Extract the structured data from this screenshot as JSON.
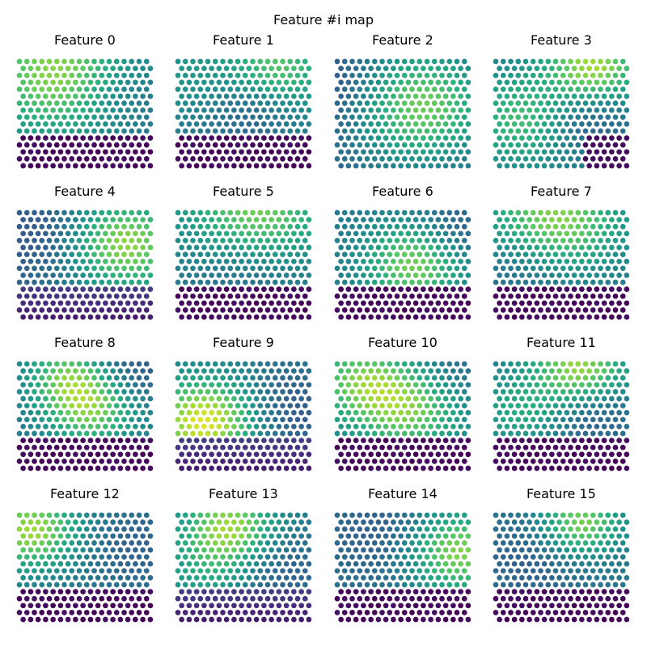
{
  "figure": {
    "suptitle": "Feature #i map"
  },
  "chart_data": {
    "type": "heatmap",
    "grid": "hexagonal",
    "rows": 16,
    "cols": 18,
    "colormap": "viridis",
    "value_range": [
      0,
      1
    ],
    "axes_visible": false,
    "panels": [
      {
        "title": "Feature 0",
        "lo": 0.0,
        "hi": 1.0,
        "base": 0.42,
        "tilt": [
          0.0,
          -0.05
        ],
        "blobs": [
          [
            0.35,
            0.14,
            0.45,
            0.4
          ],
          [
            0.7,
            0.24,
            -0.18,
            0.3
          ]
        ],
        "dark_bottom": true
      },
      {
        "title": "Feature 1",
        "lo": 0.0,
        "hi": 1.0,
        "base": 0.42,
        "tilt": [
          0.05,
          -0.05
        ],
        "blobs": [
          [
            0.75,
            0.08,
            0.3,
            0.25
          ],
          [
            0.1,
            0.2,
            0.12,
            0.3
          ],
          [
            0.55,
            0.4,
            -0.14,
            0.25
          ]
        ],
        "dark_bottom": true
      },
      {
        "title": "Feature 2",
        "lo": 0.0,
        "hi": 1.0,
        "base": 0.3,
        "tilt": [
          0.0,
          0.0
        ],
        "blobs": [
          [
            0.62,
            0.42,
            0.5,
            0.4
          ],
          [
            0.1,
            0.3,
            -0.12,
            0.3
          ]
        ],
        "dark_bottom": false
      },
      {
        "title": "Feature 3",
        "lo": 0.0,
        "hi": 1.0,
        "base": 0.42,
        "tilt": [
          0.0,
          0.0
        ],
        "blobs": [
          [
            0.75,
            0.05,
            0.45,
            0.25
          ],
          [
            0.22,
            0.55,
            0.3,
            0.3
          ],
          [
            0.65,
            0.55,
            -0.18,
            0.25
          ]
        ],
        "dark_bottom": false,
        "dark_right": true
      },
      {
        "title": "Feature 4",
        "lo": 0.0,
        "hi": 1.0,
        "base": 0.38,
        "tilt": [
          0.05,
          0.0
        ],
        "blobs": [
          [
            0.8,
            0.3,
            0.45,
            0.3
          ],
          [
            0.2,
            0.2,
            -0.1,
            0.3
          ]
        ],
        "dark_bottom": false,
        "fade_bottom": true
      },
      {
        "title": "Feature 5",
        "lo": 0.0,
        "hi": 1.0,
        "base": 0.42,
        "tilt": [
          0.0,
          -0.05
        ],
        "blobs": [
          [
            0.6,
            0.05,
            0.4,
            0.35
          ],
          [
            0.55,
            0.4,
            -0.14,
            0.3
          ]
        ],
        "dark_bottom": true
      },
      {
        "title": "Feature 6",
        "lo": 0.0,
        "hi": 1.0,
        "base": 0.4,
        "tilt": [
          0.0,
          0.0
        ],
        "blobs": [
          [
            0.6,
            0.48,
            0.42,
            0.28
          ],
          [
            0.9,
            0.2,
            -0.14,
            0.25
          ]
        ],
        "dark_bottom": true
      },
      {
        "title": "Feature 7",
        "lo": 0.0,
        "hi": 1.0,
        "base": 0.4,
        "tilt": [
          0.0,
          -0.05
        ],
        "blobs": [
          [
            0.45,
            0.1,
            0.42,
            0.35
          ],
          [
            0.25,
            0.45,
            -0.12,
            0.25
          ]
        ],
        "dark_bottom": true
      },
      {
        "title": "Feature 8",
        "lo": 0.0,
        "hi": 1.0,
        "base": 0.4,
        "tilt": [
          0.0,
          0.0
        ],
        "blobs": [
          [
            0.35,
            0.1,
            0.3,
            0.22
          ],
          [
            0.55,
            0.42,
            0.4,
            0.25
          ],
          [
            0.85,
            0.08,
            -0.14,
            0.22
          ]
        ],
        "dark_bottom": true
      },
      {
        "title": "Feature 9",
        "lo": 0.0,
        "hi": 1.0,
        "base": 0.42,
        "tilt": [
          0.0,
          0.0
        ],
        "blobs": [
          [
            0.2,
            0.55,
            0.55,
            0.28
          ],
          [
            0.85,
            0.45,
            -0.14,
            0.3
          ]
        ],
        "dark_bottom": false,
        "fade_bottom": true
      },
      {
        "title": "Feature 10",
        "lo": 0.0,
        "hi": 1.0,
        "base": 0.42,
        "tilt": [
          0.0,
          0.0
        ],
        "blobs": [
          [
            0.15,
            0.15,
            0.3,
            0.25
          ],
          [
            0.55,
            0.4,
            0.4,
            0.3
          ],
          [
            0.85,
            0.1,
            -0.12,
            0.25
          ]
        ],
        "dark_bottom": true
      },
      {
        "title": "Feature 11",
        "lo": 0.0,
        "hi": 1.0,
        "base": 0.42,
        "tilt": [
          0.0,
          0.0
        ],
        "blobs": [
          [
            0.65,
            0.05,
            0.45,
            0.25
          ],
          [
            0.2,
            0.45,
            0.2,
            0.25
          ],
          [
            0.7,
            0.45,
            -0.16,
            0.25
          ]
        ],
        "dark_bottom": true
      },
      {
        "title": "Feature 12",
        "lo": 0.0,
        "hi": 1.0,
        "base": 0.42,
        "tilt": [
          0.0,
          -0.05
        ],
        "blobs": [
          [
            0.08,
            0.15,
            0.42,
            0.25
          ],
          [
            0.9,
            0.25,
            -0.12,
            0.3
          ]
        ],
        "dark_bottom": true
      },
      {
        "title": "Feature 13",
        "lo": 0.0,
        "hi": 1.0,
        "base": 0.42,
        "tilt": [
          0.0,
          0.0
        ],
        "blobs": [
          [
            0.4,
            0.12,
            0.45,
            0.25
          ],
          [
            0.25,
            0.55,
            0.18,
            0.25
          ],
          [
            0.7,
            0.5,
            -0.14,
            0.3
          ]
        ],
        "dark_bottom": false,
        "fade_bottom": true
      },
      {
        "title": "Feature 14",
        "lo": 0.0,
        "hi": 1.0,
        "base": 0.38,
        "tilt": [
          0.0,
          0.0
        ],
        "blobs": [
          [
            0.92,
            0.35,
            0.45,
            0.28
          ],
          [
            0.4,
            0.2,
            -0.1,
            0.3
          ]
        ],
        "dark_bottom": true
      },
      {
        "title": "Feature 15",
        "lo": 0.0,
        "hi": 1.0,
        "base": 0.4,
        "tilt": [
          0.0,
          0.0
        ],
        "blobs": [
          [
            0.65,
            0.08,
            0.42,
            0.22
          ],
          [
            0.3,
            0.4,
            -0.1,
            0.3
          ]
        ],
        "dark_bottom": true
      }
    ]
  }
}
